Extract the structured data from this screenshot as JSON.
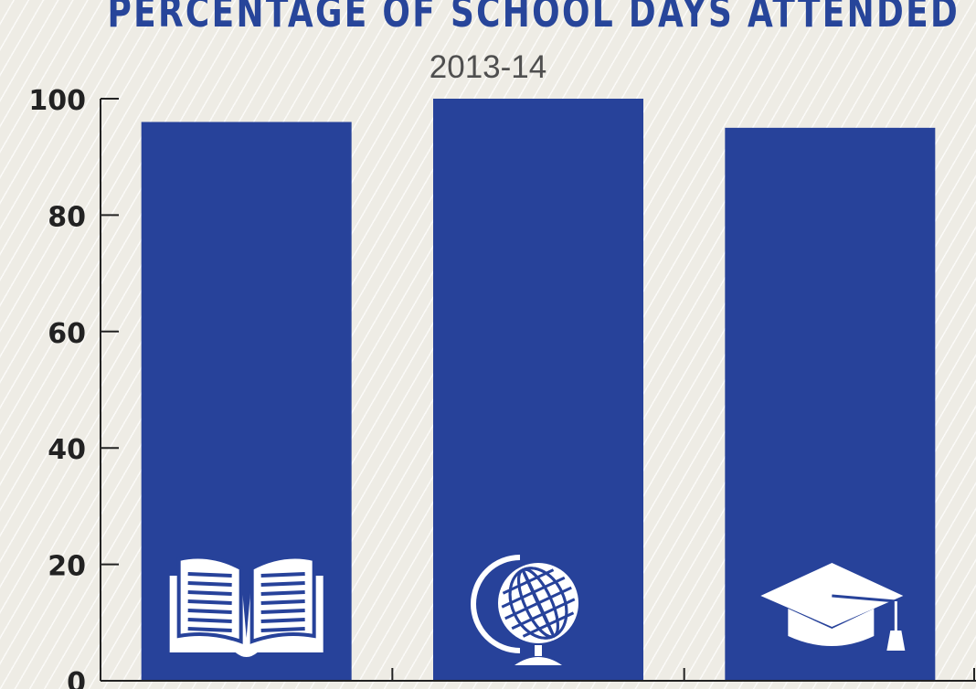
{
  "chart_data": {
    "type": "bar",
    "title": "PERCENTAGE OF SCHOOL DAYS ATTENDED",
    "subtitle": "2013-14",
    "categories": [
      "",
      "",
      ""
    ],
    "category_icons": [
      "open-book-icon",
      "globe-icon",
      "graduation-cap-icon"
    ],
    "values": [
      96,
      100,
      95
    ],
    "ylim": [
      0,
      100
    ],
    "yticks": [
      0,
      20,
      40,
      60,
      80,
      100
    ],
    "bar_color": "#27429a",
    "grid": false
  }
}
